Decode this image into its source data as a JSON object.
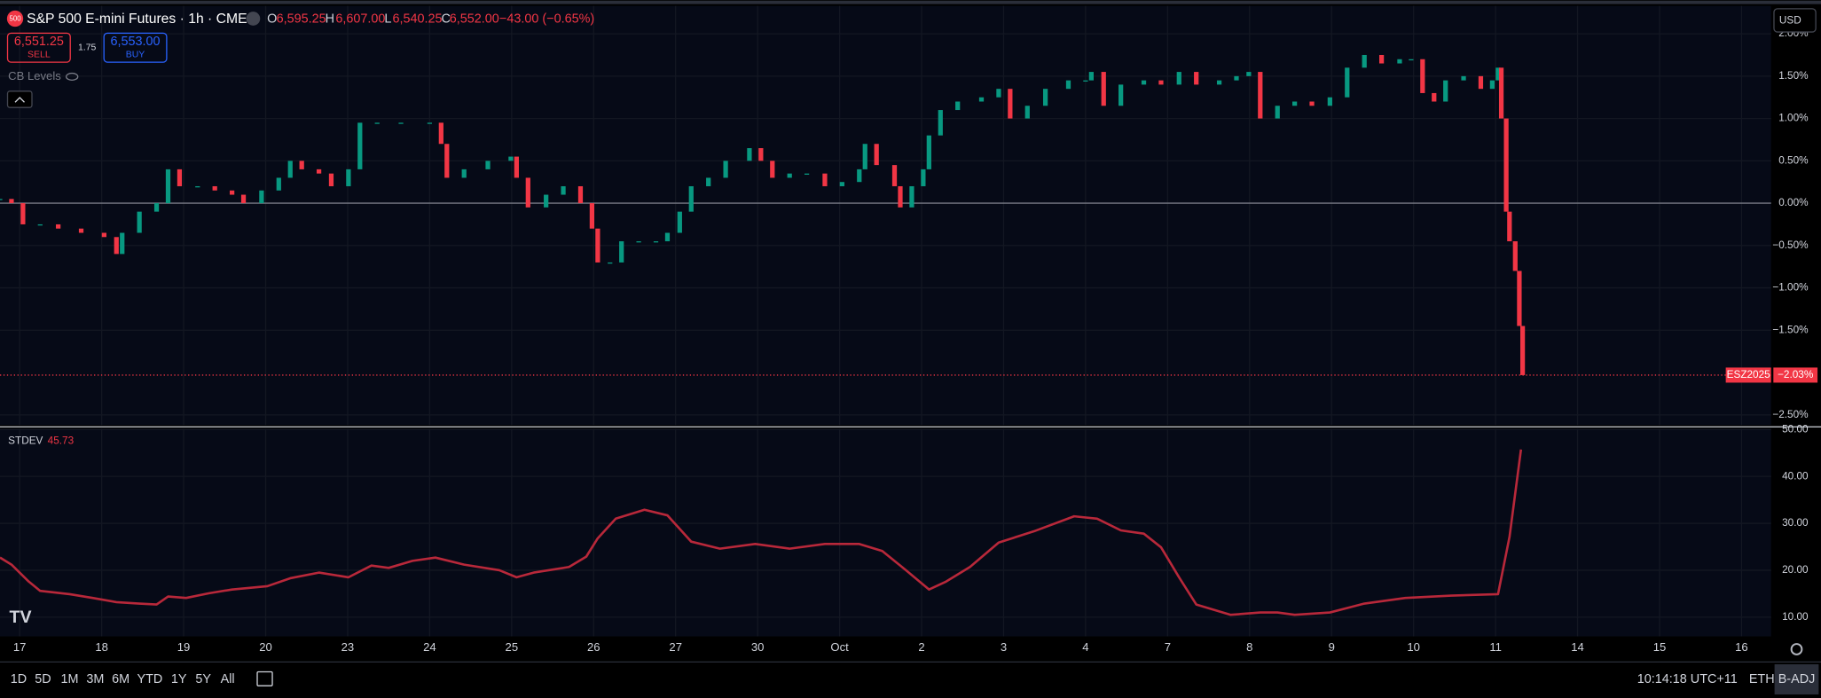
{
  "header": {
    "symbol_icon": "500",
    "title": "S&P 500 E-mini Futures · 1h · CME",
    "ohlc": [
      {
        "key": "O",
        "value": "6,595.25"
      },
      {
        "key": "H",
        "value": "6,607.00"
      },
      {
        "key": "L",
        "value": "6,540.25"
      },
      {
        "key": "C",
        "value": "6,552.00"
      }
    ],
    "change": "−43.00 (−0.65%)",
    "sell_price": "6,551.25",
    "sell_label": "SELL",
    "spread": "1.75",
    "buy_price": "6,553.00",
    "buy_label": "BUY",
    "indicator": "CB Levels",
    "currency": "USD"
  },
  "chart_data": [
    {
      "type": "candlestick",
      "up_color": "#089981",
      "down_color": "#f23645",
      "x": [
        -0.24,
        -0.1,
        0.04,
        0.25,
        0.47,
        0.75,
        1.03,
        1.18,
        1.25,
        1.46,
        1.67,
        1.81,
        1.95,
        2.17,
        2.38,
        2.59,
        2.73,
        2.95,
        3.16,
        3.3,
        3.44,
        3.65,
        3.8,
        4.01,
        4.15,
        4.36,
        4.65,
        5.0,
        5.14,
        5.21,
        5.42,
        5.71,
        5.99,
        6.06,
        6.2,
        6.42,
        6.63,
        6.84,
        6.98,
        7.05,
        7.2,
        7.34,
        7.55,
        7.76,
        7.9,
        8.05,
        8.19,
        8.4,
        8.61,
        8.9,
        9.04,
        9.18,
        9.39,
        9.6,
        9.82,
        10.03,
        10.24,
        10.31,
        10.45,
        10.67,
        10.74,
        10.88,
        11.02,
        11.09,
        11.23,
        11.44,
        11.73,
        11.94,
        12.08,
        12.29,
        12.51,
        12.79,
        13.0,
        13.07,
        13.22,
        13.43,
        13.71,
        13.92,
        14.14,
        14.35,
        14.63,
        14.84,
        14.99,
        15.13,
        15.34,
        15.55,
        15.76,
        15.98,
        16.19,
        16.4,
        16.61,
        16.83,
        16.97,
        17.11,
        17.25,
        17.39,
        17.61,
        17.82,
        17.96,
        18.03,
        18.07,
        18.13,
        18.17,
        18.24,
        18.29,
        18.33
      ],
      "close": [
        0.05,
        0.0,
        -0.25,
        -0.25,
        -0.3,
        -0.35,
        -0.4,
        -0.6,
        -0.35,
        -0.1,
        0.0,
        0.4,
        0.2,
        0.2,
        0.15,
        0.1,
        0.0,
        0.15,
        0.3,
        0.5,
        0.4,
        0.35,
        0.2,
        0.4,
        0.95,
        0.95,
        0.95,
        0.95,
        0.7,
        0.3,
        0.4,
        0.5,
        0.55,
        0.3,
        -0.05,
        0.1,
        0.2,
        0.0,
        -0.3,
        -0.7,
        -0.7,
        -0.45,
        -0.45,
        -0.45,
        -0.35,
        -0.1,
        0.2,
        0.3,
        0.5,
        0.65,
        0.5,
        0.3,
        0.35,
        0.35,
        0.2,
        0.25,
        0.4,
        0.7,
        0.45,
        0.2,
        -0.05,
        0.2,
        0.4,
        0.8,
        1.1,
        1.2,
        1.25,
        1.35,
        1.0,
        1.15,
        1.35,
        1.45,
        1.45,
        1.55,
        1.15,
        1.4,
        1.45,
        1.4,
        1.55,
        1.4,
        1.45,
        1.5,
        1.55,
        1.0,
        1.15,
        1.2,
        1.15,
        1.25,
        1.6,
        1.75,
        1.65,
        1.7,
        1.7,
        1.3,
        1.2,
        1.45,
        1.5,
        1.35,
        1.45,
        1.6,
        1.0,
        -0.1,
        -0.45,
        -0.8,
        -1.45,
        -2.03
      ],
      "xlim": [
        -0.24,
        21.36
      ],
      "ylim": [
        -2.62,
        2.33
      ],
      "yticks": [
        {
          "value": 2.0,
          "label": "2.00%"
        },
        {
          "value": 1.5,
          "label": "1.50%"
        },
        {
          "value": 1.0,
          "label": "1.00%"
        },
        {
          "value": 0.5,
          "label": "0.50%"
        },
        {
          "value": 0,
          "label": "0.00%"
        },
        {
          "value": -0.5,
          "label": "−0.50%"
        },
        {
          "value": -1.0,
          "label": "−1.00%"
        },
        {
          "value": -1.5,
          "label": "−1.50%"
        },
        {
          "value": -2.5,
          "label": "−2.50%"
        }
      ],
      "price_tag": {
        "symbol": "ESZ2025",
        "value": -2.03,
        "label": "−2.03%"
      }
    },
    {
      "type": "line",
      "last_label": "45.73",
      "x": [
        -0.24,
        -0.1,
        0.11,
        0.25,
        0.61,
        0.89,
        1.18,
        1.46,
        1.67,
        1.81,
        2.03,
        2.31,
        2.59,
        3.02,
        3.3,
        3.65,
        4.01,
        4.29,
        4.5,
        4.79,
        5.07,
        5.42,
        5.85,
        6.06,
        6.27,
        6.7,
        6.91,
        7.05,
        7.27,
        7.62,
        7.9,
        8.19,
        8.54,
        8.97,
        9.39,
        9.82,
        10.24,
        10.52,
        10.81,
        11.09,
        11.3,
        11.59,
        11.94,
        12.37,
        12.86,
        13.14,
        13.43,
        13.71,
        13.92,
        14.14,
        14.35,
        14.77,
        15.13,
        15.34,
        15.55,
        15.98,
        16.4,
        16.9,
        17.46,
        18.03,
        18.17,
        18.31
      ],
      "series": [
        {
          "name": "STDEV",
          "color": "#b8283a",
          "values": [
            22.7,
            21.2,
            17.6,
            15.6,
            14.9,
            14.1,
            13.2,
            12.9,
            12.7,
            14.4,
            14.1,
            15.1,
            15.9,
            16.6,
            18.3,
            19.5,
            18.5,
            21.0,
            20.5,
            22.0,
            22.7,
            21.2,
            20.0,
            18.5,
            19.5,
            20.7,
            22.9,
            26.8,
            31.0,
            32.9,
            31.7,
            26.1,
            24.6,
            25.6,
            24.6,
            25.6,
            25.6,
            24.1,
            20.0,
            15.9,
            17.6,
            20.7,
            25.9,
            28.3,
            31.5,
            31.0,
            28.5,
            27.8,
            24.9,
            18.5,
            12.7,
            10.5,
            11.0,
            11.0,
            10.5,
            11.0,
            12.9,
            14.1,
            14.6,
            14.9,
            27.1,
            45.73
          ]
        }
      ],
      "xlim": [
        -0.24,
        21.36
      ],
      "ylim": [
        5.9,
        50.2
      ],
      "yticks": [
        {
          "value": 50,
          "label": "50.00"
        },
        {
          "value": 40,
          "label": "40.00"
        },
        {
          "value": 30,
          "label": "30.00"
        },
        {
          "value": 20,
          "label": "20.00"
        },
        {
          "value": 10,
          "label": "10.00"
        }
      ],
      "xticks": [
        {
          "value": 0,
          "label": "17"
        },
        {
          "value": 1,
          "label": "18"
        },
        {
          "value": 2,
          "label": "19"
        },
        {
          "value": 3,
          "label": "20"
        },
        {
          "value": 4,
          "label": "23"
        },
        {
          "value": 5,
          "label": "24"
        },
        {
          "value": 6,
          "label": "25"
        },
        {
          "value": 7,
          "label": "26"
        },
        {
          "value": 8,
          "label": "27"
        },
        {
          "value": 9,
          "label": "30"
        },
        {
          "value": 10,
          "label": "Oct"
        },
        {
          "value": 11,
          "label": "2"
        },
        {
          "value": 12,
          "label": "3"
        },
        {
          "value": 13,
          "label": "4"
        },
        {
          "value": 14,
          "label": "7"
        },
        {
          "value": 15,
          "label": "8"
        },
        {
          "value": 16,
          "label": "9"
        },
        {
          "value": 17,
          "label": "10"
        },
        {
          "value": 18,
          "label": "11"
        },
        {
          "value": 19,
          "label": "14"
        },
        {
          "value": 20,
          "label": "15"
        },
        {
          "value": 21,
          "label": "16"
        }
      ]
    }
  ],
  "toolbar": {
    "ranges": [
      "1D",
      "5D",
      "1M",
      "3M",
      "6M",
      "YTD",
      "1Y",
      "5Y",
      "All"
    ],
    "time": "10:14:18 UTC+11",
    "session": "ETH",
    "adjust": "B-ADJ"
  }
}
